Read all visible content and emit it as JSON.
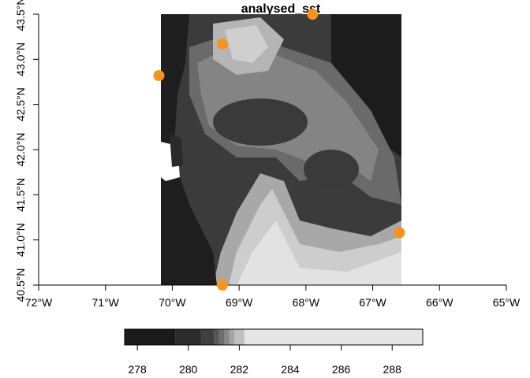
{
  "map": {
    "title": "analysed_sst",
    "x_ticks": [
      "72°W",
      "71°W",
      "70°W",
      "69°W",
      "68°W",
      "67°W",
      "66°W",
      "65°W"
    ],
    "y_ticks": [
      "40.5°N",
      "41.0°N",
      "41.5°N",
      "42.0°N",
      "42.5°N",
      "43.0°N",
      "43.5°N"
    ],
    "point_color": "#F7941D",
    "points": [
      {
        "lon": -67.9,
        "lat": 43.5
      },
      {
        "lon": -69.25,
        "lat": 43.17
      },
      {
        "lon": -70.2,
        "lat": 42.82
      },
      {
        "lon": -66.6,
        "lat": 41.08
      },
      {
        "lon": -69.25,
        "lat": 40.5
      }
    ]
  },
  "legend": {
    "labels": [
      "278",
      "280",
      "282",
      "284",
      "286",
      "288"
    ],
    "palette": [
      "#1a1a1a",
      "#2c2c2c",
      "#3f3f3f",
      "#555555",
      "#6e6e6e",
      "#878787",
      "#a3a3a3",
      "#c0c0c0",
      "#d9d9d9",
      "#e6e6e6"
    ]
  }
}
